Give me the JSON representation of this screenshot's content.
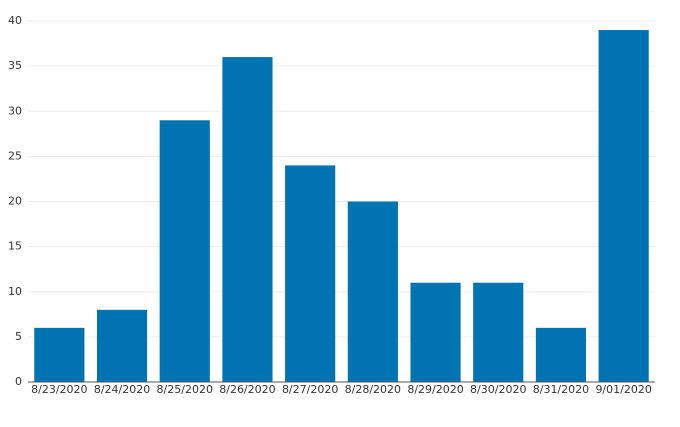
{
  "chart_data": {
    "type": "bar",
    "categories": [
      "8/23/2020",
      "8/24/2020",
      "8/25/2020",
      "8/26/2020",
      "8/27/2020",
      "8/28/2020",
      "8/29/2020",
      "8/30/2020",
      "8/31/2020",
      "9/01/2020"
    ],
    "values": [
      6,
      8,
      29,
      36,
      24,
      20,
      11,
      11,
      6,
      39
    ],
    "color": "#0074b3",
    "ylim": [
      0,
      40
    ],
    "yticks": [
      0,
      5,
      10,
      15,
      20,
      25,
      30,
      35,
      40
    ],
    "grid": true
  }
}
